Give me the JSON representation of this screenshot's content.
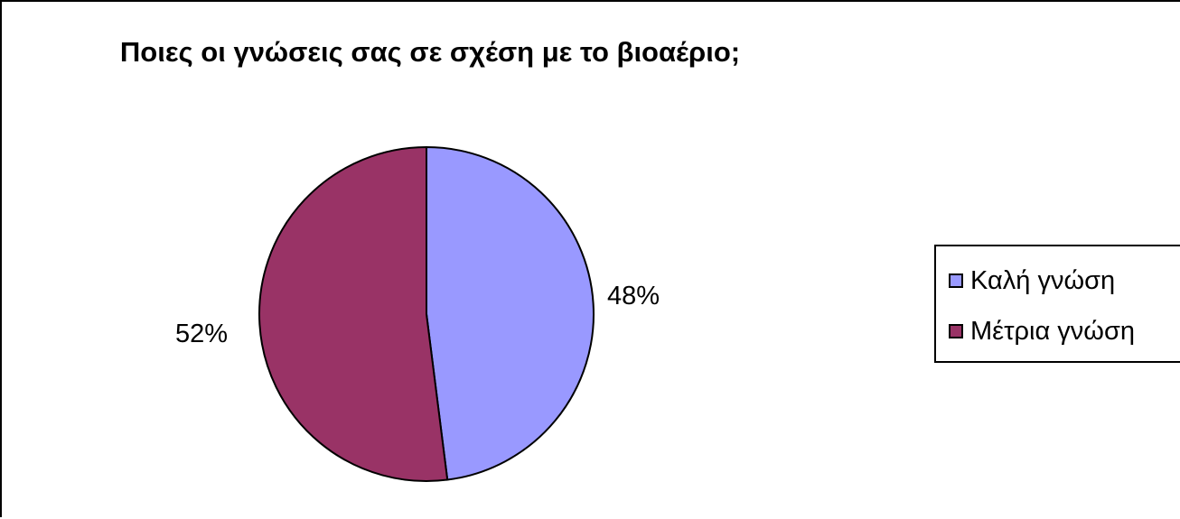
{
  "chart_data": {
    "type": "pie",
    "title": "Ποιες οι γνώσεις σας σε σχέση με το βιοαέριο;",
    "slices": [
      {
        "name": "Καλή γνώση",
        "value": 48,
        "label": "48%",
        "color": "#9999ff"
      },
      {
        "name": "Μέτρια γνώση",
        "value": 52,
        "label": "52%",
        "color": "#993366"
      }
    ],
    "legend": {
      "position": "right",
      "items": [
        {
          "label": "Καλή γνώση",
          "color": "#9999ff"
        },
        {
          "label": "Μέτρια γνώση",
          "color": "#993366"
        }
      ]
    },
    "start_angle_deg": 0,
    "direction": "clockwise"
  }
}
